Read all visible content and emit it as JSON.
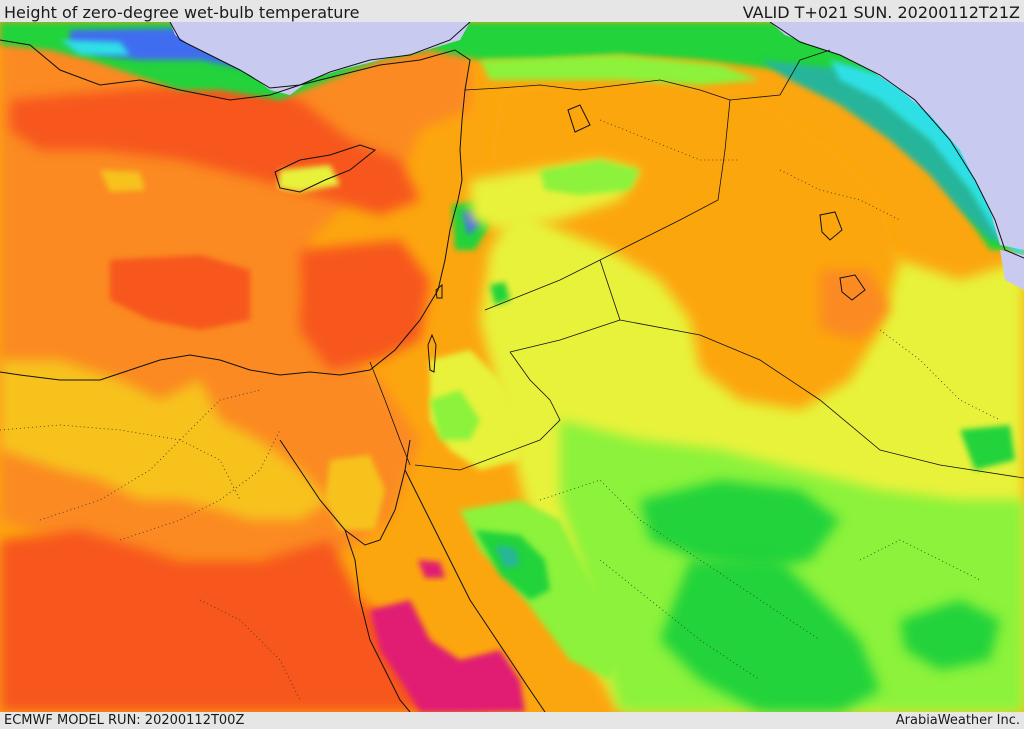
{
  "header": {
    "title": "Height of zero-degree wet-bulb temperature",
    "valid": "VALID T+021 SUN. 20200112T21Z"
  },
  "footer": {
    "model_run": "ECMWF MODEL RUN: 20200112T00Z",
    "credit": "ArabiaWeather Inc."
  },
  "map": {
    "colors": {
      "sea_cold": "#c8cbef",
      "violet": "#8a86e0",
      "blue": "#3f6df0",
      "cyan": "#2de0e6",
      "teal": "#25b59a",
      "green": "#22d33a",
      "light_green": "#8cf23a",
      "yellow": "#e8f23a",
      "light_orange": "#f7c21a",
      "orange": "#fca60f",
      "dark_orange": "#fb8a24",
      "red_orange": "#f7561a",
      "magenta": "#e01a73",
      "border": "#111111"
    }
  }
}
